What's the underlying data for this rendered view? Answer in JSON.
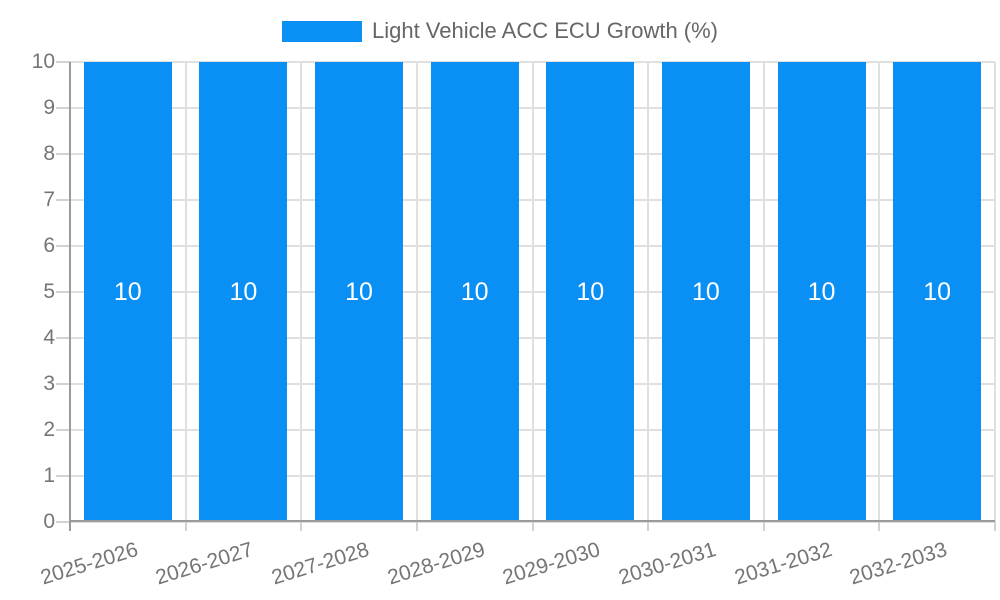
{
  "chart_data": {
    "type": "bar",
    "title": "Light Vehicle ACC ECU Growth (%)",
    "categories": [
      "2025-2026",
      "2026-2027",
      "2027-2028",
      "2028-2029",
      "2029-2030",
      "2030-2031",
      "2031-2032",
      "2032-2033"
    ],
    "series": [
      {
        "name": "Light Vehicle ACC ECU Growth (%)",
        "values": [
          10,
          10,
          10,
          10,
          10,
          10,
          10,
          10
        ]
      }
    ],
    "bar_value_labels": [
      "10",
      "10",
      "10",
      "10",
      "10",
      "10",
      "10",
      "10"
    ],
    "xlabel": "",
    "ylabel": "",
    "ylim": [
      0,
      10
    ],
    "y_ticks": [
      0,
      1,
      2,
      3,
      4,
      5,
      6,
      7,
      8,
      9,
      10
    ],
    "grid": true,
    "legend_position": "top-center",
    "x_label_rotation_deg": -17,
    "colors": {
      "bar": "#0a8ff5",
      "grid": "#e0e0e0",
      "axis_line": "#9a9a9a",
      "tick": "#d2d2d2",
      "axis_text": "#757575",
      "legend_text": "#666666",
      "bar_label_text": "#ffffff",
      "background": "#ffffff"
    }
  }
}
